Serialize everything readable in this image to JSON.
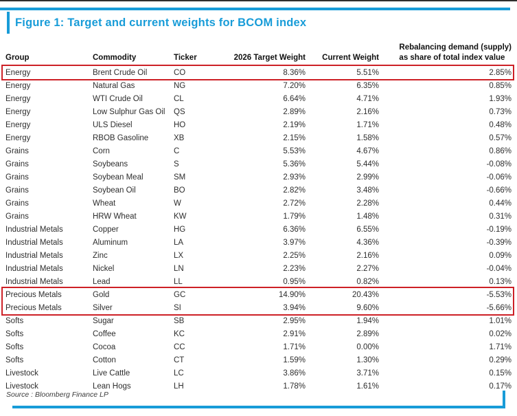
{
  "figure": {
    "title": "Figure 1: Target and current weights for BCOM index"
  },
  "table": {
    "headers": {
      "group": "Group",
      "commodity": "Commodity",
      "ticker": "Ticker",
      "target": "2026 Target Weight",
      "current": "Current Weight",
      "rebalancing_line1": "Rebalancing demand (supply)",
      "rebalancing_line2": "as share of total index value"
    },
    "rows": [
      {
        "group": "Energy",
        "commodity": "Brent Crude Oil",
        "ticker": "CO",
        "target": "8.36%",
        "current": "5.51%",
        "rebalancing": "2.85%",
        "highlighted": true
      },
      {
        "group": "Energy",
        "commodity": "Natural Gas",
        "ticker": "NG",
        "target": "7.20%",
        "current": "6.35%",
        "rebalancing": "0.85%",
        "highlighted": false
      },
      {
        "group": "Energy",
        "commodity": "WTI Crude Oil",
        "ticker": "CL",
        "target": "6.64%",
        "current": "4.71%",
        "rebalancing": "1.93%",
        "highlighted": false
      },
      {
        "group": "Energy",
        "commodity": "Low Sulphur Gas Oil",
        "ticker": "QS",
        "target": "2.89%",
        "current": "2.16%",
        "rebalancing": "0.73%",
        "highlighted": false
      },
      {
        "group": "Energy",
        "commodity": "ULS Diesel",
        "ticker": "HO",
        "target": "2.19%",
        "current": "1.71%",
        "rebalancing": "0.48%",
        "highlighted": false
      },
      {
        "group": "Energy",
        "commodity": "RBOB Gasoline",
        "ticker": "XB",
        "target": "2.15%",
        "current": "1.58%",
        "rebalancing": "0.57%",
        "highlighted": false
      },
      {
        "group": "Grains",
        "commodity": "Corn",
        "ticker": "C",
        "target": "5.53%",
        "current": "4.67%",
        "rebalancing": "0.86%",
        "highlighted": false
      },
      {
        "group": "Grains",
        "commodity": "Soybeans",
        "ticker": "S",
        "target": "5.36%",
        "current": "5.44%",
        "rebalancing": "-0.08%",
        "highlighted": false
      },
      {
        "group": "Grains",
        "commodity": "Soybean Meal",
        "ticker": "SM",
        "target": "2.93%",
        "current": "2.99%",
        "rebalancing": "-0.06%",
        "highlighted": false
      },
      {
        "group": "Grains",
        "commodity": "Soybean Oil",
        "ticker": "BO",
        "target": "2.82%",
        "current": "3.48%",
        "rebalancing": "-0.66%",
        "highlighted": false
      },
      {
        "group": "Grains",
        "commodity": "Wheat",
        "ticker": "W",
        "target": "2.72%",
        "current": "2.28%",
        "rebalancing": "0.44%",
        "highlighted": false
      },
      {
        "group": "Grains",
        "commodity": "HRW Wheat",
        "ticker": "KW",
        "target": "1.79%",
        "current": "1.48%",
        "rebalancing": "0.31%",
        "highlighted": false
      },
      {
        "group": "Industrial Metals",
        "commodity": "Copper",
        "ticker": "HG",
        "target": "6.36%",
        "current": "6.55%",
        "rebalancing": "-0.19%",
        "highlighted": false
      },
      {
        "group": "Industrial Metals",
        "commodity": "Aluminum",
        "ticker": "LA",
        "target": "3.97%",
        "current": "4.36%",
        "rebalancing": "-0.39%",
        "highlighted": false
      },
      {
        "group": "Industrial Metals",
        "commodity": "Zinc",
        "ticker": "LX",
        "target": "2.25%",
        "current": "2.16%",
        "rebalancing": "0.09%",
        "highlighted": false
      },
      {
        "group": "Industrial Metals",
        "commodity": "Nickel",
        "ticker": "LN",
        "target": "2.23%",
        "current": "2.27%",
        "rebalancing": "-0.04%",
        "highlighted": false
      },
      {
        "group": "Industrial Metals",
        "commodity": "Lead",
        "ticker": "LL",
        "target": "0.95%",
        "current": "0.82%",
        "rebalancing": "0.13%",
        "highlighted": false
      },
      {
        "group": "Precious Metals",
        "commodity": "Gold",
        "ticker": "GC",
        "target": "14.90%",
        "current": "20.43%",
        "rebalancing": "-5.53%",
        "highlighted": true
      },
      {
        "group": "Precious Metals",
        "commodity": "Silver",
        "ticker": "SI",
        "target": "3.94%",
        "current": "9.60%",
        "rebalancing": "-5.66%",
        "highlighted": true
      },
      {
        "group": "Softs",
        "commodity": "Sugar",
        "ticker": "SB",
        "target": "2.95%",
        "current": "1.94%",
        "rebalancing": "1.01%",
        "highlighted": false
      },
      {
        "group": "Softs",
        "commodity": "Coffee",
        "ticker": "KC",
        "target": "2.91%",
        "current": "2.89%",
        "rebalancing": "0.02%",
        "highlighted": false
      },
      {
        "group": "Softs",
        "commodity": "Cocoa",
        "ticker": "CC",
        "target": "1.71%",
        "current": "0.00%",
        "rebalancing": "1.71%",
        "highlighted": false
      },
      {
        "group": "Softs",
        "commodity": "Cotton",
        "ticker": "CT",
        "target": "1.59%",
        "current": "1.30%",
        "rebalancing": "0.29%",
        "highlighted": false
      },
      {
        "group": "Livestock",
        "commodity": "Live Cattle",
        "ticker": "LC",
        "target": "3.86%",
        "current": "3.71%",
        "rebalancing": "0.15%",
        "highlighted": false
      },
      {
        "group": "Livestock",
        "commodity": "Lean Hogs",
        "ticker": "LH",
        "target": "1.78%",
        "current": "1.61%",
        "rebalancing": "0.17%",
        "highlighted": false
      }
    ]
  },
  "source": "Source : Bloomberg Finance LP",
  "colors": {
    "accent_blue": "#189cd8",
    "highlight_red": "#cd2026"
  }
}
